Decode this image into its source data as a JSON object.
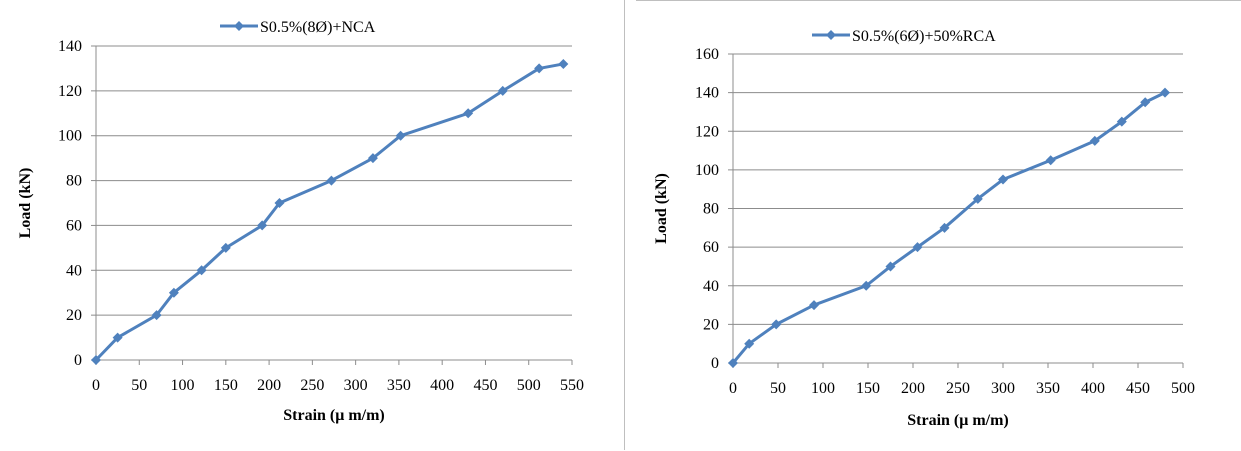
{
  "chart_data": [
    {
      "type": "line",
      "xlabel": "Strain (μ m/m)",
      "ylabel": "Load (kN)",
      "xlim": [
        0,
        550
      ],
      "ylim": [
        0,
        140
      ],
      "xticks": [
        0,
        50,
        100,
        150,
        200,
        250,
        300,
        350,
        400,
        450,
        500,
        550
      ],
      "yticks": [
        0,
        20,
        40,
        60,
        80,
        100,
        120,
        140
      ],
      "grid": "horizontal",
      "legend": "top-center",
      "series": [
        {
          "name": "S0.5%(8Ø)+NCA",
          "color": "#4f81bd",
          "x": [
            0,
            25,
            70,
            90,
            122,
            150,
            192,
            212,
            272,
            320,
            352,
            430,
            470,
            512,
            540
          ],
          "y": [
            0,
            10,
            20,
            30,
            40,
            50,
            60,
            70,
            80,
            90,
            100,
            110,
            120,
            130,
            132
          ]
        }
      ]
    },
    {
      "type": "line",
      "xlabel": "Strain (μ m/m)",
      "ylabel": "Load (kN)",
      "xlim": [
        0,
        500
      ],
      "ylim": [
        0,
        160
      ],
      "xticks": [
        0,
        50,
        100,
        150,
        200,
        250,
        300,
        350,
        400,
        450,
        500
      ],
      "yticks": [
        0,
        20,
        40,
        60,
        80,
        100,
        120,
        140,
        160
      ],
      "grid": "horizontal",
      "legend": "top-center",
      "series": [
        {
          "name": "S0.5%(6Ø)+50%RCA",
          "color": "#4f81bd",
          "x": [
            0,
            18,
            48,
            90,
            148,
            175,
            205,
            235,
            272,
            300,
            353,
            402,
            432,
            458,
            480
          ],
          "y": [
            0,
            10,
            20,
            30,
            40,
            50,
            60,
            70,
            85,
            95,
            105,
            115,
            125,
            135,
            140
          ]
        }
      ]
    }
  ]
}
